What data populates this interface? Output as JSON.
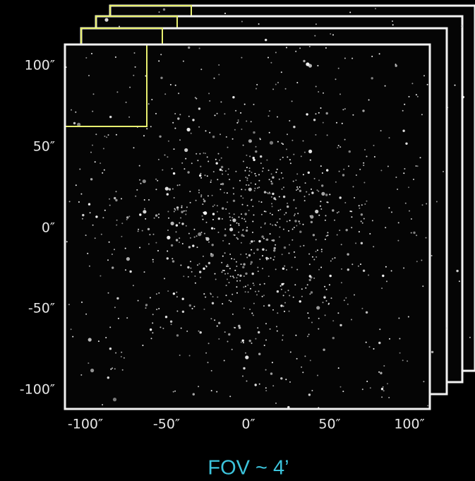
{
  "x_axis": {
    "labels": [
      "-100″",
      "-50″",
      "0″",
      "50″",
      "100″"
    ]
  },
  "y_axis": {
    "labels": [
      "100″",
      "50″",
      "0″",
      "-50″",
      "-100″"
    ]
  },
  "caption": "FOV ~ 4’"
}
